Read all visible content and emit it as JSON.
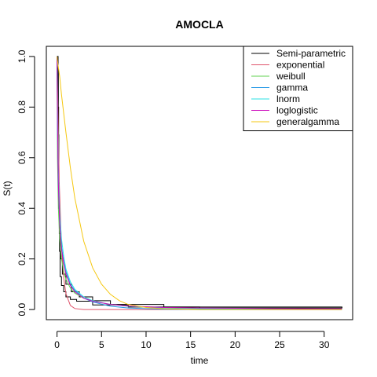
{
  "chart_data": {
    "type": "line",
    "title": "AMOCLA",
    "xlabel": "time",
    "ylabel": "S(t)",
    "xlim": [
      -1.2,
      33.2
    ],
    "ylim": [
      -0.04,
      1.04
    ],
    "xticks": [
      0,
      5,
      10,
      15,
      20,
      25,
      30
    ],
    "yticks": [
      0.0,
      0.2,
      0.4,
      0.6,
      0.8,
      1.0
    ],
    "ytick_labels": [
      "0.0",
      "0.2",
      "0.4",
      "0.6",
      "0.8",
      "1.0"
    ],
    "grid": false,
    "legend_position": "top-right",
    "series": [
      {
        "name": "Semi-parametric",
        "kind": "step",
        "color": "#000000",
        "x": [
          0,
          0.1,
          0.15,
          0.2,
          0.28,
          0.35,
          0.5,
          0.75,
          1,
          1.5,
          2.2,
          4,
          8,
          16,
          32
        ],
        "y": [
          1.0,
          0.95,
          0.69,
          0.4,
          0.23,
          0.13,
          0.095,
          0.07,
          0.05,
          0.04,
          0.033,
          0.018,
          0.01,
          0.006,
          0.005
        ]
      },
      {
        "name": "Semi-parametric",
        "kind": "step",
        "color": "#000000",
        "x": [
          0,
          0.12,
          0.18,
          0.25,
          0.4,
          0.6,
          1,
          1.6,
          2.5,
          4,
          6,
          12,
          32
        ],
        "y": [
          1.0,
          0.8,
          0.5,
          0.3,
          0.2,
          0.14,
          0.1,
          0.07,
          0.05,
          0.035,
          0.02,
          0.01,
          0.006
        ]
      },
      {
        "name": "exponential",
        "kind": "curve",
        "color": "#DF536B",
        "x": [
          0,
          0.25,
          0.5,
          0.75,
          1,
          1.5,
          2,
          3,
          4,
          6,
          8,
          12,
          16,
          24,
          32
        ],
        "y": [
          1.0,
          0.5,
          0.25,
          0.125,
          0.063,
          0.016,
          0.004,
          0.0,
          0.0,
          0.0,
          0.0,
          0.0,
          0.0,
          0.0,
          0.0
        ]
      },
      {
        "name": "weibull",
        "kind": "curve",
        "color": "#61D04F",
        "x": [
          0,
          0.05,
          0.15,
          0.3,
          0.5,
          0.75,
          1,
          1.5,
          2,
          3,
          4,
          6,
          8,
          12,
          16,
          24,
          32
        ],
        "y": [
          1.0,
          0.6,
          0.4,
          0.28,
          0.2,
          0.15,
          0.12,
          0.085,
          0.065,
          0.045,
          0.033,
          0.02,
          0.013,
          0.006,
          0.003,
          0.001,
          0.0
        ]
      },
      {
        "name": "gamma",
        "kind": "curve",
        "color": "#2297E6",
        "x": [
          0,
          0.05,
          0.15,
          0.3,
          0.5,
          0.75,
          1,
          1.5,
          2,
          3,
          4,
          6,
          8,
          12,
          16,
          24,
          32
        ],
        "y": [
          1.0,
          0.7,
          0.48,
          0.34,
          0.25,
          0.19,
          0.15,
          0.1,
          0.075,
          0.045,
          0.03,
          0.013,
          0.006,
          0.001,
          0.0,
          0.0,
          0.0
        ]
      },
      {
        "name": "lnorm",
        "kind": "curve",
        "color": "#28E2E5",
        "x": [
          0,
          0.05,
          0.15,
          0.3,
          0.5,
          0.75,
          1,
          1.5,
          2,
          3,
          4,
          6,
          8,
          12,
          16,
          24,
          32
        ],
        "y": [
          1.0,
          0.82,
          0.55,
          0.38,
          0.28,
          0.21,
          0.16,
          0.11,
          0.08,
          0.05,
          0.035,
          0.02,
          0.013,
          0.007,
          0.004,
          0.002,
          0.001
        ]
      },
      {
        "name": "loglogistic",
        "kind": "curve",
        "color": "#CD0BBC",
        "x": [
          0,
          0.05,
          0.15,
          0.3,
          0.5,
          0.75,
          1,
          1.5,
          2,
          3,
          4,
          6,
          8,
          12,
          16,
          24,
          32
        ],
        "y": [
          1.0,
          0.75,
          0.5,
          0.34,
          0.24,
          0.18,
          0.14,
          0.095,
          0.07,
          0.045,
          0.033,
          0.02,
          0.014,
          0.008,
          0.006,
          0.004,
          0.003
        ]
      },
      {
        "name": "generalgamma",
        "kind": "curve",
        "color": "#F5C710",
        "x": [
          0,
          0.1,
          0.3,
          0.5,
          1,
          1.5,
          2,
          3,
          4,
          5,
          6,
          7,
          8,
          10,
          12,
          16,
          24,
          32
        ],
        "y": [
          1.0,
          0.97,
          0.92,
          0.85,
          0.7,
          0.56,
          0.44,
          0.27,
          0.165,
          0.1,
          0.06,
          0.035,
          0.02,
          0.008,
          0.003,
          0.0,
          0.0,
          0.0
        ]
      }
    ]
  }
}
